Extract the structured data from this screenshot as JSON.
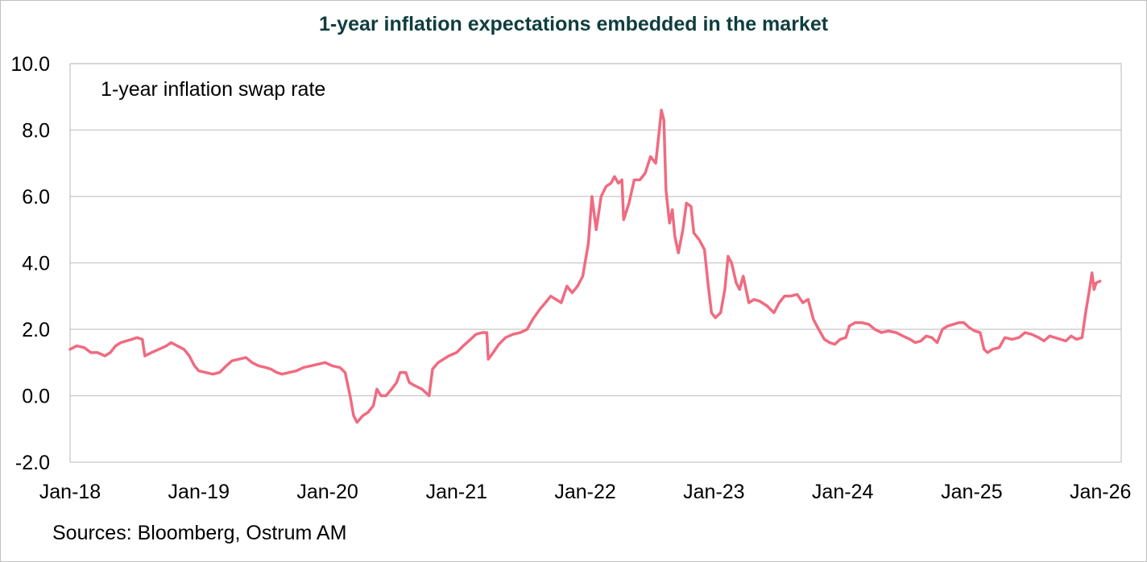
{
  "title": "1-year inflation expectations embedded in the market",
  "source": "Sources: Bloomberg, Ostrum AM",
  "colors": {
    "line": "#f06b80",
    "grid": "#c8c8c8",
    "title": "#0f3d3e"
  },
  "chart_data": {
    "type": "line",
    "title": "1-year inflation expectations embedded in the market",
    "annotation": "1-year inflation swap rate",
    "xlabel": "",
    "ylabel": "",
    "ylim": [
      -2.0,
      10.0
    ],
    "xlim": [
      "2018-01-01",
      "2026-03-01"
    ],
    "yticks": [
      "-2.0",
      "0.0",
      "2.0",
      "4.0",
      "6.0",
      "8.0",
      "10.0"
    ],
    "xticks": [
      {
        "date": "2018-01-01",
        "label": "Jan-18"
      },
      {
        "date": "2019-01-01",
        "label": "Jan-19"
      },
      {
        "date": "2020-01-01",
        "label": "Jan-20"
      },
      {
        "date": "2021-01-01",
        "label": "Jan-21"
      },
      {
        "date": "2022-01-01",
        "label": "Jan-22"
      },
      {
        "date": "2023-01-01",
        "label": "Jan-23"
      },
      {
        "date": "2024-01-01",
        "label": "Jan-24"
      },
      {
        "date": "2025-01-01",
        "label": "Jan-25"
      },
      {
        "date": "2026-01-01",
        "label": "Jan-26"
      }
    ],
    "grid": true,
    "legend": "none",
    "series": [
      {
        "points": [
          [
            "2018-01-01",
            1.4
          ],
          [
            "2018-01-20",
            1.5
          ],
          [
            "2018-02-10",
            1.45
          ],
          [
            "2018-03-01",
            1.3
          ],
          [
            "2018-03-20",
            1.3
          ],
          [
            "2018-04-10",
            1.2
          ],
          [
            "2018-04-25",
            1.3
          ],
          [
            "2018-05-10",
            1.5
          ],
          [
            "2018-05-25",
            1.6
          ],
          [
            "2018-06-10",
            1.65
          ],
          [
            "2018-06-25",
            1.7
          ],
          [
            "2018-07-10",
            1.75
          ],
          [
            "2018-07-25",
            1.7
          ],
          [
            "2018-08-01",
            1.2
          ],
          [
            "2018-08-20",
            1.3
          ],
          [
            "2018-09-10",
            1.4
          ],
          [
            "2018-10-01",
            1.5
          ],
          [
            "2018-10-15",
            1.6
          ],
          [
            "2018-11-01",
            1.5
          ],
          [
            "2018-11-20",
            1.4
          ],
          [
            "2018-12-05",
            1.2
          ],
          [
            "2018-12-20",
            0.9
          ],
          [
            "2019-01-01",
            0.75
          ],
          [
            "2019-01-20",
            0.7
          ],
          [
            "2019-02-10",
            0.65
          ],
          [
            "2019-03-01",
            0.7
          ],
          [
            "2019-03-20",
            0.9
          ],
          [
            "2019-04-05",
            1.05
          ],
          [
            "2019-04-25",
            1.1
          ],
          [
            "2019-05-15",
            1.15
          ],
          [
            "2019-06-01",
            1.0
          ],
          [
            "2019-06-20",
            0.9
          ],
          [
            "2019-07-10",
            0.85
          ],
          [
            "2019-07-25",
            0.8
          ],
          [
            "2019-08-10",
            0.7
          ],
          [
            "2019-08-25",
            0.65
          ],
          [
            "2019-09-15",
            0.7
          ],
          [
            "2019-10-05",
            0.75
          ],
          [
            "2019-10-25",
            0.85
          ],
          [
            "2019-11-15",
            0.9
          ],
          [
            "2019-12-05",
            0.95
          ],
          [
            "2019-12-25",
            1.0
          ],
          [
            "2020-01-15",
            0.9
          ],
          [
            "2020-02-05",
            0.85
          ],
          [
            "2020-02-20",
            0.7
          ],
          [
            "2020-03-05",
            0.0
          ],
          [
            "2020-03-15",
            -0.6
          ],
          [
            "2020-03-25",
            -0.8
          ],
          [
            "2020-04-10",
            -0.6
          ],
          [
            "2020-04-25",
            -0.5
          ],
          [
            "2020-05-10",
            -0.3
          ],
          [
            "2020-05-20",
            0.2
          ],
          [
            "2020-06-01",
            0.0
          ],
          [
            "2020-06-15",
            0.0
          ],
          [
            "2020-07-01",
            0.2
          ],
          [
            "2020-07-15",
            0.4
          ],
          [
            "2020-07-25",
            0.7
          ],
          [
            "2020-08-10",
            0.7
          ],
          [
            "2020-08-20",
            0.4
          ],
          [
            "2020-09-05",
            0.3
          ],
          [
            "2020-09-25",
            0.2
          ],
          [
            "2020-10-15",
            0.0
          ],
          [
            "2020-10-25",
            0.8
          ],
          [
            "2020-11-10",
            1.0
          ],
          [
            "2020-11-25",
            1.1
          ],
          [
            "2020-12-10",
            1.2
          ],
          [
            "2021-01-01",
            1.3
          ],
          [
            "2021-01-20",
            1.5
          ],
          [
            "2021-02-10",
            1.7
          ],
          [
            "2021-02-25",
            1.85
          ],
          [
            "2021-03-15",
            1.9
          ],
          [
            "2021-03-28",
            1.9
          ],
          [
            "2021-04-01",
            1.1
          ],
          [
            "2021-04-15",
            1.3
          ],
          [
            "2021-05-01",
            1.55
          ],
          [
            "2021-05-20",
            1.75
          ],
          [
            "2021-06-10",
            1.85
          ],
          [
            "2021-07-01",
            1.9
          ],
          [
            "2021-07-20",
            2.0
          ],
          [
            "2021-08-05",
            2.3
          ],
          [
            "2021-08-25",
            2.6
          ],
          [
            "2021-09-10",
            2.8
          ],
          [
            "2021-09-25",
            3.0
          ],
          [
            "2021-10-10",
            2.9
          ],
          [
            "2021-10-25",
            2.8
          ],
          [
            "2021-11-10",
            3.3
          ],
          [
            "2021-11-25",
            3.1
          ],
          [
            "2021-12-10",
            3.3
          ],
          [
            "2021-12-25",
            3.6
          ],
          [
            "2022-01-10",
            4.6
          ],
          [
            "2022-01-20",
            6.0
          ],
          [
            "2022-02-01",
            5.0
          ],
          [
            "2022-02-15",
            6.0
          ],
          [
            "2022-03-01",
            6.3
          ],
          [
            "2022-03-15",
            6.4
          ],
          [
            "2022-03-25",
            6.6
          ],
          [
            "2022-04-05",
            6.4
          ],
          [
            "2022-04-15",
            6.5
          ],
          [
            "2022-04-20",
            5.3
          ],
          [
            "2022-05-05",
            5.8
          ],
          [
            "2022-05-20",
            6.5
          ],
          [
            "2022-06-05",
            6.5
          ],
          [
            "2022-06-20",
            6.7
          ],
          [
            "2022-07-05",
            7.2
          ],
          [
            "2022-07-20",
            7.0
          ],
          [
            "2022-08-01",
            8.2
          ],
          [
            "2022-08-05",
            8.6
          ],
          [
            "2022-08-12",
            8.3
          ],
          [
            "2022-08-18",
            6.2
          ],
          [
            "2022-08-28",
            5.2
          ],
          [
            "2022-09-05",
            5.6
          ],
          [
            "2022-09-12",
            4.8
          ],
          [
            "2022-09-22",
            4.3
          ],
          [
            "2022-10-05",
            5.0
          ],
          [
            "2022-10-15",
            5.8
          ],
          [
            "2022-10-28",
            5.7
          ],
          [
            "2022-11-05",
            4.9
          ],
          [
            "2022-11-20",
            4.7
          ],
          [
            "2022-12-05",
            4.4
          ],
          [
            "2022-12-15",
            3.4
          ],
          [
            "2022-12-25",
            2.5
          ],
          [
            "2023-01-05",
            2.35
          ],
          [
            "2023-01-20",
            2.5
          ],
          [
            "2023-02-01",
            3.2
          ],
          [
            "2023-02-10",
            4.2
          ],
          [
            "2023-02-20",
            4.0
          ],
          [
            "2023-03-05",
            3.4
          ],
          [
            "2023-03-15",
            3.2
          ],
          [
            "2023-03-25",
            3.6
          ],
          [
            "2023-04-10",
            2.8
          ],
          [
            "2023-04-25",
            2.9
          ],
          [
            "2023-05-10",
            2.85
          ],
          [
            "2023-06-01",
            2.7
          ],
          [
            "2023-06-20",
            2.5
          ],
          [
            "2023-07-05",
            2.8
          ],
          [
            "2023-07-20",
            3.0
          ],
          [
            "2023-08-05",
            3.0
          ],
          [
            "2023-08-25",
            3.05
          ],
          [
            "2023-09-10",
            2.8
          ],
          [
            "2023-09-25",
            2.9
          ],
          [
            "2023-10-10",
            2.3
          ],
          [
            "2023-10-25",
            2.0
          ],
          [
            "2023-11-10",
            1.7
          ],
          [
            "2023-11-25",
            1.6
          ],
          [
            "2023-12-10",
            1.55
          ],
          [
            "2023-12-25",
            1.7
          ],
          [
            "2024-01-10",
            1.75
          ],
          [
            "2024-01-20",
            2.1
          ],
          [
            "2024-02-05",
            2.2
          ],
          [
            "2024-02-25",
            2.2
          ],
          [
            "2024-03-15",
            2.15
          ],
          [
            "2024-04-01",
            2.0
          ],
          [
            "2024-04-20",
            1.9
          ],
          [
            "2024-05-10",
            1.95
          ],
          [
            "2024-06-01",
            1.9
          ],
          [
            "2024-06-20",
            1.8
          ],
          [
            "2024-07-10",
            1.7
          ],
          [
            "2024-07-25",
            1.6
          ],
          [
            "2024-08-10",
            1.65
          ],
          [
            "2024-08-25",
            1.8
          ],
          [
            "2024-09-10",
            1.75
          ],
          [
            "2024-09-25",
            1.6
          ],
          [
            "2024-10-10",
            2.0
          ],
          [
            "2024-10-25",
            2.1
          ],
          [
            "2024-11-10",
            2.15
          ],
          [
            "2024-11-25",
            2.2
          ],
          [
            "2024-12-10",
            2.2
          ],
          [
            "2024-12-25",
            2.05
          ],
          [
            "2025-01-10",
            1.95
          ],
          [
            "2025-01-25",
            1.9
          ],
          [
            "2025-02-05",
            1.4
          ],
          [
            "2025-02-15",
            1.3
          ],
          [
            "2025-03-01",
            1.4
          ],
          [
            "2025-03-20",
            1.45
          ],
          [
            "2025-04-05",
            1.75
          ],
          [
            "2025-04-25",
            1.7
          ],
          [
            "2025-05-15",
            1.75
          ],
          [
            "2025-06-01",
            1.9
          ],
          [
            "2025-06-20",
            1.85
          ],
          [
            "2025-07-10",
            1.75
          ],
          [
            "2025-07-25",
            1.65
          ],
          [
            "2025-08-10",
            1.8
          ],
          [
            "2025-08-25",
            1.75
          ],
          [
            "2025-09-10",
            1.7
          ],
          [
            "2025-09-25",
            1.65
          ],
          [
            "2025-10-10",
            1.8
          ],
          [
            "2025-10-25",
            1.7
          ],
          [
            "2025-11-10",
            1.75
          ],
          [
            "2025-11-20",
            2.5
          ],
          [
            "2025-12-01",
            3.2
          ],
          [
            "2025-12-08",
            3.7
          ],
          [
            "2025-12-14",
            3.2
          ],
          [
            "2025-12-20",
            3.4
          ],
          [
            "2025-12-31",
            3.45
          ]
        ]
      }
    ]
  }
}
